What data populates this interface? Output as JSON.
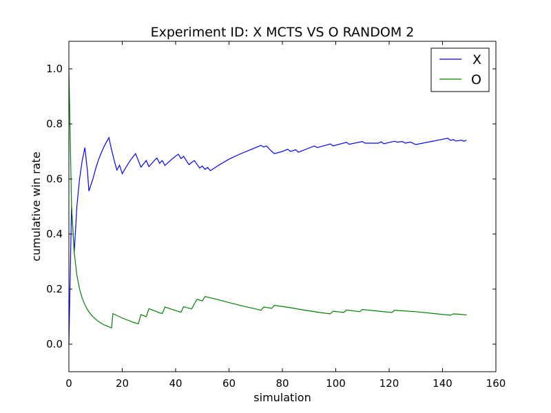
{
  "chart_data": {
    "type": "line",
    "title": "Experiment ID: X MCTS VS O RANDOM 2",
    "xlabel": "simulation",
    "ylabel": "cumulative win rate",
    "xlim": [
      0,
      160
    ],
    "ylim": [
      -0.1,
      1.1
    ],
    "xticks": [
      "0",
      "20",
      "40",
      "60",
      "80",
      "100",
      "120",
      "140",
      "160"
    ],
    "yticks": [
      "0.0",
      "0.2",
      "0.4",
      "0.6",
      "0.8",
      "1.0"
    ],
    "grid": false,
    "legend_position": "top-right",
    "series": [
      {
        "name": "X",
        "color": "#0000ff",
        "points": [
          [
            0,
            0.0
          ],
          [
            1,
            0.5
          ],
          [
            2,
            0.333
          ],
          [
            3,
            0.5
          ],
          [
            4,
            0.6
          ],
          [
            5,
            0.667
          ],
          [
            6,
            0.714
          ],
          [
            7,
            0.625
          ],
          [
            7.5,
            0.556
          ],
          [
            9,
            0.6
          ],
          [
            10,
            0.636
          ],
          [
            11,
            0.667
          ],
          [
            12,
            0.692
          ],
          [
            13,
            0.714
          ],
          [
            14,
            0.733
          ],
          [
            15,
            0.75
          ],
          [
            16,
            0.706
          ],
          [
            17,
            0.667
          ],
          [
            18,
            0.632
          ],
          [
            19,
            0.65
          ],
          [
            20,
            0.619
          ],
          [
            21,
            0.636
          ],
          [
            22,
            0.652
          ],
          [
            23,
            0.667
          ],
          [
            24,
            0.68
          ],
          [
            25,
            0.692
          ],
          [
            26,
            0.667
          ],
          [
            27,
            0.643
          ],
          [
            28,
            0.655
          ],
          [
            29,
            0.667
          ],
          [
            30,
            0.645
          ],
          [
            31,
            0.656
          ],
          [
            32,
            0.667
          ],
          [
            33,
            0.676
          ],
          [
            34,
            0.657
          ],
          [
            35,
            0.667
          ],
          [
            36,
            0.649
          ],
          [
            38,
            0.667
          ],
          [
            40,
            0.683
          ],
          [
            41,
            0.69
          ],
          [
            42,
            0.674
          ],
          [
            43,
            0.682
          ],
          [
            44,
            0.667
          ],
          [
            45,
            0.652
          ],
          [
            46,
            0.66
          ],
          [
            47,
            0.667
          ],
          [
            48,
            0.653
          ],
          [
            49,
            0.64
          ],
          [
            50,
            0.647
          ],
          [
            51,
            0.635
          ],
          [
            52,
            0.642
          ],
          [
            53,
            0.63
          ],
          [
            56,
            0.649
          ],
          [
            60,
            0.672
          ],
          [
            64,
            0.69
          ],
          [
            68,
            0.706
          ],
          [
            72,
            0.722
          ],
          [
            73,
            0.716
          ],
          [
            74,
            0.72
          ],
          [
            76,
            0.7
          ],
          [
            77,
            0.692
          ],
          [
            80,
            0.7
          ],
          [
            82,
            0.708
          ],
          [
            83,
            0.7
          ],
          [
            85,
            0.706
          ],
          [
            86,
            0.697
          ],
          [
            92,
            0.72
          ],
          [
            93,
            0.714
          ],
          [
            98,
            0.727
          ],
          [
            99,
            0.72
          ],
          [
            104,
            0.733
          ],
          [
            105,
            0.726
          ],
          [
            110,
            0.736
          ],
          [
            111,
            0.73
          ],
          [
            116,
            0.73
          ],
          [
            117,
            0.735
          ],
          [
            118,
            0.728
          ],
          [
            122,
            0.737
          ],
          [
            123,
            0.734
          ],
          [
            125,
            0.736
          ],
          [
            126,
            0.73
          ],
          [
            128,
            0.734
          ],
          [
            130,
            0.725
          ],
          [
            142,
            0.748
          ],
          [
            143,
            0.74
          ],
          [
            144,
            0.743
          ],
          [
            145,
            0.738
          ],
          [
            147,
            0.741
          ],
          [
            148,
            0.737
          ],
          [
            149,
            0.741
          ]
        ]
      },
      {
        "name": "O",
        "color": "#008000",
        "points": [
          [
            0,
            1.0
          ],
          [
            1,
            0.5
          ],
          [
            2,
            0.333
          ],
          [
            3,
            0.25
          ],
          [
            4,
            0.2
          ],
          [
            5,
            0.167
          ],
          [
            6,
            0.143
          ],
          [
            7,
            0.125
          ],
          [
            8,
            0.111
          ],
          [
            9,
            0.1
          ],
          [
            10,
            0.091
          ],
          [
            11,
            0.083
          ],
          [
            12,
            0.077
          ],
          [
            13,
            0.071
          ],
          [
            14,
            0.067
          ],
          [
            15,
            0.063
          ],
          [
            16,
            0.059
          ],
          [
            16.5,
            0.111
          ],
          [
            20,
            0.095
          ],
          [
            24,
            0.08
          ],
          [
            26,
            0.074
          ],
          [
            27,
            0.107
          ],
          [
            29,
            0.1
          ],
          [
            30,
            0.129
          ],
          [
            34,
            0.114
          ],
          [
            35,
            0.111
          ],
          [
            36,
            0.135
          ],
          [
            40,
            0.122
          ],
          [
            42,
            0.116
          ],
          [
            43,
            0.136
          ],
          [
            46,
            0.128
          ],
          [
            47,
            0.146
          ],
          [
            48,
            0.163
          ],
          [
            49,
            0.16
          ],
          [
            50,
            0.157
          ],
          [
            51,
            0.173
          ],
          [
            55,
            0.164
          ],
          [
            60,
            0.151
          ],
          [
            65,
            0.139
          ],
          [
            70,
            0.128
          ],
          [
            72,
            0.123
          ],
          [
            73,
            0.135
          ],
          [
            76,
            0.13
          ],
          [
            77,
            0.141
          ],
          [
            82,
            0.134
          ],
          [
            88,
            0.124
          ],
          [
            94,
            0.115
          ],
          [
            98,
            0.11
          ],
          [
            99,
            0.12
          ],
          [
            103,
            0.115
          ],
          [
            104,
            0.124
          ],
          [
            109,
            0.118
          ],
          [
            110,
            0.126
          ],
          [
            116,
            0.12
          ],
          [
            121,
            0.115
          ],
          [
            122,
            0.123
          ],
          [
            130,
            0.118
          ],
          [
            138,
            0.11
          ],
          [
            143,
            0.105
          ],
          [
            144,
            0.11
          ],
          [
            146,
            0.109
          ],
          [
            149,
            0.106
          ]
        ]
      }
    ]
  }
}
